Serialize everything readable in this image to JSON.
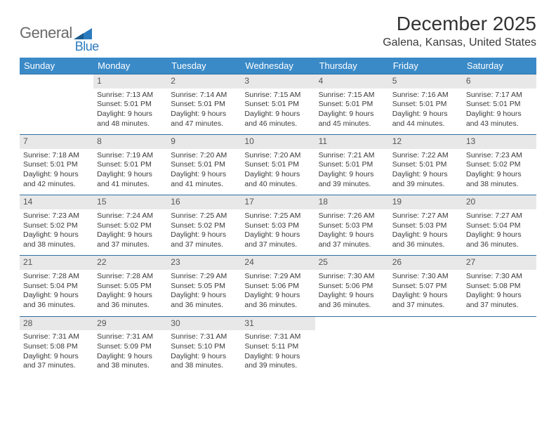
{
  "logo": {
    "text1": "General",
    "text2": "Blue"
  },
  "title": "December 2025",
  "location": "Galena, Kansas, United States",
  "colors": {
    "header_bg": "#3a8ac8",
    "header_text": "#ffffff",
    "daynum_bg": "#e8e8e8",
    "cell_border": "#2f6fa3",
    "body_text": "#3a3a3a",
    "logo_gray": "#6a6a6a",
    "logo_blue": "#2b7bbf"
  },
  "days_of_week": [
    "Sunday",
    "Monday",
    "Tuesday",
    "Wednesday",
    "Thursday",
    "Friday",
    "Saturday"
  ],
  "calendar": {
    "start_offset": 1,
    "days": [
      {
        "n": 1,
        "sunrise": "7:13 AM",
        "sunset": "5:01 PM",
        "daylight": "9 hours and 48 minutes."
      },
      {
        "n": 2,
        "sunrise": "7:14 AM",
        "sunset": "5:01 PM",
        "daylight": "9 hours and 47 minutes."
      },
      {
        "n": 3,
        "sunrise": "7:15 AM",
        "sunset": "5:01 PM",
        "daylight": "9 hours and 46 minutes."
      },
      {
        "n": 4,
        "sunrise": "7:15 AM",
        "sunset": "5:01 PM",
        "daylight": "9 hours and 45 minutes."
      },
      {
        "n": 5,
        "sunrise": "7:16 AM",
        "sunset": "5:01 PM",
        "daylight": "9 hours and 44 minutes."
      },
      {
        "n": 6,
        "sunrise": "7:17 AM",
        "sunset": "5:01 PM",
        "daylight": "9 hours and 43 minutes."
      },
      {
        "n": 7,
        "sunrise": "7:18 AM",
        "sunset": "5:01 PM",
        "daylight": "9 hours and 42 minutes."
      },
      {
        "n": 8,
        "sunrise": "7:19 AM",
        "sunset": "5:01 PM",
        "daylight": "9 hours and 41 minutes."
      },
      {
        "n": 9,
        "sunrise": "7:20 AM",
        "sunset": "5:01 PM",
        "daylight": "9 hours and 41 minutes."
      },
      {
        "n": 10,
        "sunrise": "7:20 AM",
        "sunset": "5:01 PM",
        "daylight": "9 hours and 40 minutes."
      },
      {
        "n": 11,
        "sunrise": "7:21 AM",
        "sunset": "5:01 PM",
        "daylight": "9 hours and 39 minutes."
      },
      {
        "n": 12,
        "sunrise": "7:22 AM",
        "sunset": "5:01 PM",
        "daylight": "9 hours and 39 minutes."
      },
      {
        "n": 13,
        "sunrise": "7:23 AM",
        "sunset": "5:02 PM",
        "daylight": "9 hours and 38 minutes."
      },
      {
        "n": 14,
        "sunrise": "7:23 AM",
        "sunset": "5:02 PM",
        "daylight": "9 hours and 38 minutes."
      },
      {
        "n": 15,
        "sunrise": "7:24 AM",
        "sunset": "5:02 PM",
        "daylight": "9 hours and 37 minutes."
      },
      {
        "n": 16,
        "sunrise": "7:25 AM",
        "sunset": "5:02 PM",
        "daylight": "9 hours and 37 minutes."
      },
      {
        "n": 17,
        "sunrise": "7:25 AM",
        "sunset": "5:03 PM",
        "daylight": "9 hours and 37 minutes."
      },
      {
        "n": 18,
        "sunrise": "7:26 AM",
        "sunset": "5:03 PM",
        "daylight": "9 hours and 37 minutes."
      },
      {
        "n": 19,
        "sunrise": "7:27 AM",
        "sunset": "5:03 PM",
        "daylight": "9 hours and 36 minutes."
      },
      {
        "n": 20,
        "sunrise": "7:27 AM",
        "sunset": "5:04 PM",
        "daylight": "9 hours and 36 minutes."
      },
      {
        "n": 21,
        "sunrise": "7:28 AM",
        "sunset": "5:04 PM",
        "daylight": "9 hours and 36 minutes."
      },
      {
        "n": 22,
        "sunrise": "7:28 AM",
        "sunset": "5:05 PM",
        "daylight": "9 hours and 36 minutes."
      },
      {
        "n": 23,
        "sunrise": "7:29 AM",
        "sunset": "5:05 PM",
        "daylight": "9 hours and 36 minutes."
      },
      {
        "n": 24,
        "sunrise": "7:29 AM",
        "sunset": "5:06 PM",
        "daylight": "9 hours and 36 minutes."
      },
      {
        "n": 25,
        "sunrise": "7:30 AM",
        "sunset": "5:06 PM",
        "daylight": "9 hours and 36 minutes."
      },
      {
        "n": 26,
        "sunrise": "7:30 AM",
        "sunset": "5:07 PM",
        "daylight": "9 hours and 37 minutes."
      },
      {
        "n": 27,
        "sunrise": "7:30 AM",
        "sunset": "5:08 PM",
        "daylight": "9 hours and 37 minutes."
      },
      {
        "n": 28,
        "sunrise": "7:31 AM",
        "sunset": "5:08 PM",
        "daylight": "9 hours and 37 minutes."
      },
      {
        "n": 29,
        "sunrise": "7:31 AM",
        "sunset": "5:09 PM",
        "daylight": "9 hours and 38 minutes."
      },
      {
        "n": 30,
        "sunrise": "7:31 AM",
        "sunset": "5:10 PM",
        "daylight": "9 hours and 38 minutes."
      },
      {
        "n": 31,
        "sunrise": "7:31 AM",
        "sunset": "5:11 PM",
        "daylight": "9 hours and 39 minutes."
      }
    ]
  },
  "labels": {
    "sunrise": "Sunrise:",
    "sunset": "Sunset:",
    "daylight": "Daylight:"
  }
}
